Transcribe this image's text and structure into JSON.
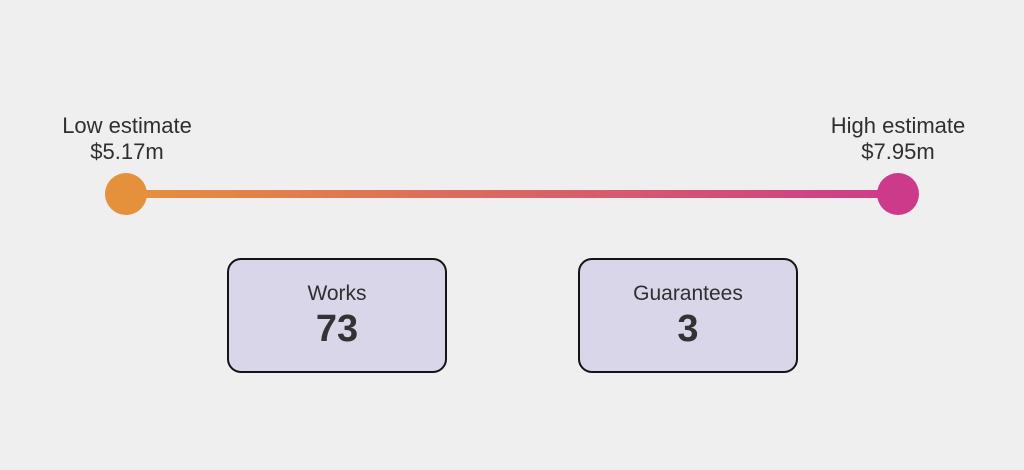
{
  "page": {
    "background_color": "#EFEFEF",
    "text_color": "#2F2F2F"
  },
  "range_chart": {
    "low": {
      "label": "Low estimate",
      "value": "$5.17m",
      "color": "#E5913C"
    },
    "high": {
      "label": "High estimate",
      "value": "$7.95m",
      "color": "#CE3A8A"
    }
  },
  "stats": {
    "works": {
      "label": "Works",
      "value": "73"
    },
    "guarantees": {
      "label": "Guarantees",
      "value": "3"
    }
  },
  "chart_data": {
    "type": "range",
    "orientation": "horizontal",
    "points": [
      {
        "label": "Low estimate",
        "value": 5.17,
        "value_label": "$5.17m",
        "color": "#E5913C"
      },
      {
        "label": "High estimate",
        "value": 7.95,
        "value_label": "$7.95m",
        "color": "#CE3A8A"
      }
    ],
    "connector_gradient": [
      "#E5913C",
      "#CE3A8A"
    ],
    "card_background": "#D9D6E9",
    "card_border_color": "#141414",
    "kpis": [
      {
        "label": "Works",
        "value": 73
      },
      {
        "label": "Guarantees",
        "value": 3
      }
    ]
  }
}
